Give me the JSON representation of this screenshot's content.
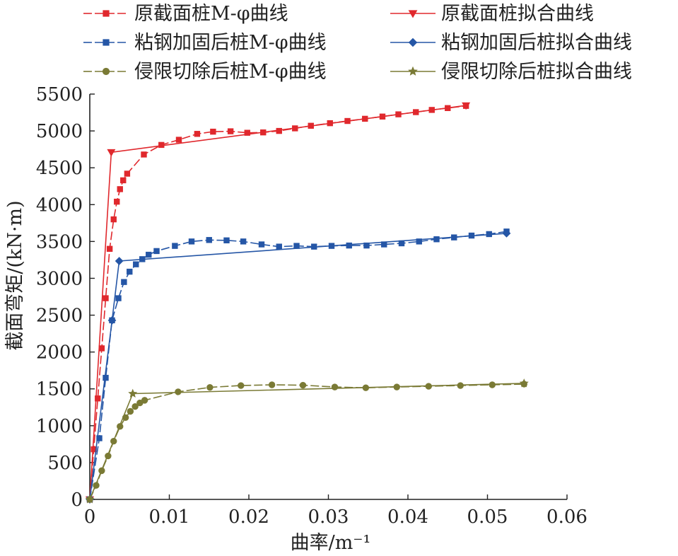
{
  "chart_data": {
    "type": "line",
    "xlabel": "曲率/m⁻¹",
    "ylabel": "截面弯矩/(kN·m)",
    "xlim": [
      0,
      0.06
    ],
    "ylim": [
      0,
      5500
    ],
    "x_ticks": [
      "0",
      "0.01",
      "0.02",
      "0.03",
      "0.04",
      "0.05",
      "0.06"
    ],
    "y_ticks": [
      "0",
      "500",
      "1000",
      "1500",
      "2000",
      "2500",
      "3000",
      "3500",
      "4000",
      "4500",
      "5000",
      "5500"
    ],
    "grid": false,
    "legend_position": "top",
    "series": [
      {
        "name": "原截面桩M-φ曲线",
        "color": "#e0282d",
        "marker": "square",
        "dashed": true,
        "points": [
          [
            0,
            0
          ],
          [
            0.0005,
            680
          ],
          [
            0.001,
            1370
          ],
          [
            0.0015,
            2050
          ],
          [
            0.002,
            2730
          ],
          [
            0.0025,
            3400
          ],
          [
            0.003,
            3800
          ],
          [
            0.0034,
            4040
          ],
          [
            0.0038,
            4210
          ],
          [
            0.0042,
            4330
          ],
          [
            0.0047,
            4420
          ],
          [
            0.0068,
            4680
          ],
          [
            0.009,
            4810
          ],
          [
            0.0112,
            4880
          ],
          [
            0.0135,
            4960
          ],
          [
            0.0155,
            4990
          ],
          [
            0.0177,
            4995
          ],
          [
            0.0198,
            4975
          ],
          [
            0.0218,
            4980
          ],
          [
            0.0238,
            5000
          ],
          [
            0.0258,
            5035
          ],
          [
            0.0278,
            5070
          ],
          [
            0.0302,
            5105
          ],
          [
            0.0324,
            5135
          ],
          [
            0.0346,
            5165
          ],
          [
            0.0368,
            5195
          ],
          [
            0.0388,
            5225
          ],
          [
            0.041,
            5255
          ],
          [
            0.043,
            5285
          ],
          [
            0.045,
            5310
          ],
          [
            0.0473,
            5340
          ]
        ]
      },
      {
        "name": "原截面桩拟合曲线",
        "color": "#e0282d",
        "marker": "triangle-down",
        "dashed": false,
        "points": [
          [
            0,
            0
          ],
          [
            0.0027,
            4710
          ],
          [
            0.0473,
            5345
          ]
        ]
      },
      {
        "name": "粘钢加固后桩M-φ曲线",
        "color": "#2556a6",
        "marker": "square",
        "dashed": true,
        "points": [
          [
            0,
            0
          ],
          [
            0.0012,
            830
          ],
          [
            0.002,
            1650
          ],
          [
            0.0028,
            2430
          ],
          [
            0.0036,
            2730
          ],
          [
            0.0043,
            2950
          ],
          [
            0.005,
            3090
          ],
          [
            0.0058,
            3190
          ],
          [
            0.0066,
            3260
          ],
          [
            0.0074,
            3320
          ],
          [
            0.0084,
            3370
          ],
          [
            0.0107,
            3440
          ],
          [
            0.0128,
            3500
          ],
          [
            0.015,
            3520
          ],
          [
            0.0172,
            3515
          ],
          [
            0.0193,
            3500
          ],
          [
            0.0216,
            3460
          ],
          [
            0.0238,
            3430
          ],
          [
            0.026,
            3440
          ],
          [
            0.0282,
            3430
          ],
          [
            0.0304,
            3440
          ],
          [
            0.0326,
            3445
          ],
          [
            0.0348,
            3445
          ],
          [
            0.037,
            3460
          ],
          [
            0.0392,
            3475
          ],
          [
            0.0414,
            3500
          ],
          [
            0.0436,
            3530
          ],
          [
            0.0458,
            3555
          ],
          [
            0.048,
            3580
          ],
          [
            0.0502,
            3600
          ],
          [
            0.0524,
            3635
          ]
        ]
      },
      {
        "name": "粘钢加固后桩拟合曲线",
        "color": "#2556a6",
        "marker": "diamond",
        "dashed": false,
        "points": [
          [
            0,
            0
          ],
          [
            0.0028,
            2430
          ],
          [
            0.0037,
            3235
          ],
          [
            0.0524,
            3610
          ]
        ]
      },
      {
        "name": "侵限切除后桩M-φ曲线",
        "color": "#7a7a35",
        "marker": "circle",
        "dashed": true,
        "points": [
          [
            0,
            0
          ],
          [
            0.0008,
            190
          ],
          [
            0.0015,
            390
          ],
          [
            0.0023,
            590
          ],
          [
            0.003,
            790
          ],
          [
            0.0038,
            990
          ],
          [
            0.0045,
            1110
          ],
          [
            0.0051,
            1195
          ],
          [
            0.0057,
            1260
          ],
          [
            0.0063,
            1310
          ],
          [
            0.0069,
            1345
          ],
          [
            0.0111,
            1460
          ],
          [
            0.0151,
            1520
          ],
          [
            0.019,
            1545
          ],
          [
            0.0229,
            1555
          ],
          [
            0.0268,
            1550
          ],
          [
            0.0308,
            1525
          ],
          [
            0.0347,
            1515
          ],
          [
            0.0386,
            1525
          ],
          [
            0.0426,
            1535
          ],
          [
            0.0466,
            1545
          ],
          [
            0.0506,
            1555
          ],
          [
            0.0546,
            1565
          ]
        ]
      },
      {
        "name": "侵限切除后桩拟合曲线",
        "color": "#7a7a35",
        "marker": "star",
        "dashed": false,
        "points": [
          [
            0,
            0
          ],
          [
            0.0054,
            1435
          ],
          [
            0.0546,
            1575
          ]
        ]
      }
    ]
  }
}
